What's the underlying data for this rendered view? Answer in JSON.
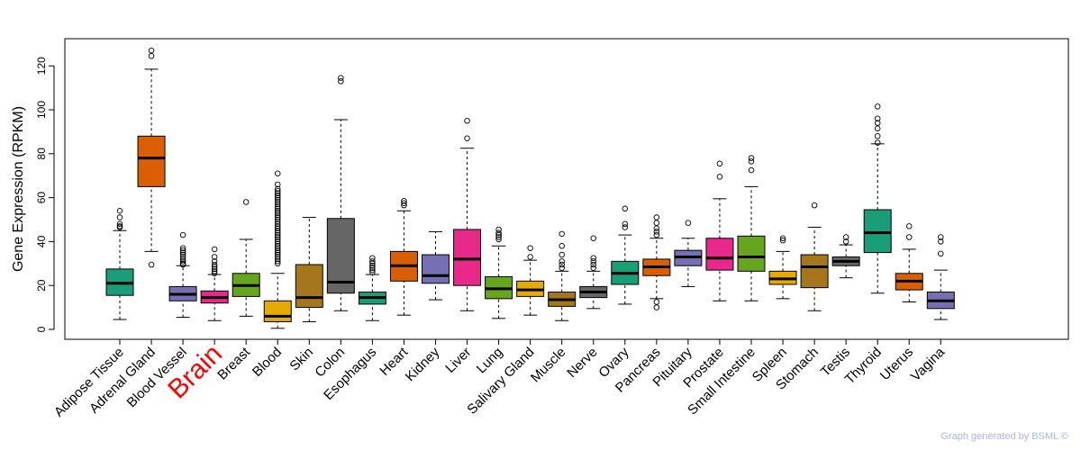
{
  "chart_data": {
    "type": "box",
    "ylabel": "Gene Expression (RPKM)",
    "xlabel": "",
    "ylim": [
      -4,
      131
    ],
    "yticks": [
      0,
      20,
      40,
      60,
      80,
      100,
      120
    ],
    "highlight": "Brain",
    "credit": "Graph generated by BSML ©",
    "series": [
      {
        "name": "Adipose Tissue",
        "color": "#1b9e77",
        "lo": 4.5,
        "q1": 15.5,
        "median": 21,
        "q3": 27.5,
        "hi": 45,
        "outliers": [
          46.5,
          47,
          48,
          51,
          54
        ]
      },
      {
        "name": "Adrenal Gland",
        "color": "#d95f02",
        "lo": 35.5,
        "q1": 65,
        "median": 78,
        "q3": 88,
        "hi": 118.5,
        "outliers": [
          29.5,
          124.5,
          127
        ]
      },
      {
        "name": "Blood Vessel",
        "color": "#7570b3",
        "lo": 5.5,
        "q1": 13,
        "median": 16,
        "q3": 19.5,
        "hi": 29,
        "outliers": [
          29.5,
          30,
          31,
          32,
          33,
          34,
          35,
          36,
          37,
          43
        ]
      },
      {
        "name": "Brain",
        "color": "#e7298a",
        "lo": 4,
        "q1": 12,
        "median": 14.5,
        "q3": 17.5,
        "hi": 25,
        "outliers": [
          25.5,
          26.5,
          27.5,
          28.5,
          29.5,
          31,
          33,
          36.5
        ]
      },
      {
        "name": "Breast",
        "color": "#66a61e",
        "lo": 6,
        "q1": 15,
        "median": 20,
        "q3": 25.5,
        "hi": 41,
        "outliers": [
          58
        ]
      },
      {
        "name": "Blood",
        "color": "#e6ab02",
        "lo": 0.5,
        "q1": 3.5,
        "median": 6,
        "q3": 13,
        "hi": 25.5,
        "outliers": [
          30,
          31,
          32,
          33,
          34,
          35,
          36,
          37,
          38,
          39,
          40,
          41,
          42,
          43,
          44,
          45,
          46,
          47,
          48,
          49,
          50,
          51,
          52,
          53,
          54,
          55,
          56,
          57,
          58,
          59,
          60,
          61,
          62,
          63,
          64,
          66,
          71
        ]
      },
      {
        "name": "Skin",
        "color": "#a6761d",
        "lo": 3.5,
        "q1": 10,
        "median": 14.5,
        "q3": 29.5,
        "hi": 51,
        "outliers": []
      },
      {
        "name": "Colon",
        "color": "#666666",
        "lo": 8.5,
        "q1": 16.5,
        "median": 21.5,
        "q3": 50.5,
        "hi": 95.5,
        "outliers": [
          113,
          114.5
        ]
      },
      {
        "name": "Esophagus",
        "color": "#1b9e77",
        "lo": 4,
        "q1": 11.5,
        "median": 14.5,
        "q3": 17,
        "hi": 25,
        "outliers": [
          26,
          27,
          28,
          29,
          30,
          31,
          32.5
        ]
      },
      {
        "name": "Heart",
        "color": "#d95f02",
        "lo": 6.5,
        "q1": 22,
        "median": 29,
        "q3": 35.5,
        "hi": 54,
        "outliers": [
          56.5,
          57.5,
          58.5
        ]
      },
      {
        "name": "Kidney",
        "color": "#7570b3",
        "lo": 13.5,
        "q1": 21,
        "median": 24.5,
        "q3": 34,
        "hi": 44.5,
        "outliers": []
      },
      {
        "name": "Liver",
        "color": "#e7298a",
        "lo": 8.5,
        "q1": 20,
        "median": 32,
        "q3": 45.5,
        "hi": 82.5,
        "outliers": [
          87,
          95
        ]
      },
      {
        "name": "Lung",
        "color": "#66a61e",
        "lo": 5,
        "q1": 14,
        "median": 18.5,
        "q3": 24,
        "hi": 38,
        "outliers": [
          41,
          42,
          43,
          44,
          45.5
        ]
      },
      {
        "name": "Salivary Gland",
        "color": "#e6ab02",
        "lo": 6.5,
        "q1": 15,
        "median": 18,
        "q3": 22,
        "hi": 31.5,
        "outliers": [
          33,
          37
        ]
      },
      {
        "name": "Muscle",
        "color": "#a6761d",
        "lo": 4,
        "q1": 10.5,
        "median": 13.5,
        "q3": 17,
        "hi": 26.5,
        "outliers": [
          28,
          29.5,
          31,
          34,
          38,
          43.5
        ]
      },
      {
        "name": "Nerve",
        "color": "#666666",
        "lo": 9.5,
        "q1": 14.5,
        "median": 17,
        "q3": 19.5,
        "hi": 26.5,
        "outliers": [
          28,
          29.5,
          31,
          32.5,
          41.5
        ]
      },
      {
        "name": "Ovary",
        "color": "#1b9e77",
        "lo": 11.5,
        "q1": 20.5,
        "median": 25.5,
        "q3": 31,
        "hi": 43,
        "outliers": [
          46.5,
          48,
          55
        ]
      },
      {
        "name": "Pancreas",
        "color": "#d95f02",
        "lo": 14,
        "q1": 24.5,
        "median": 28.5,
        "q3": 32,
        "hi": 41.5,
        "outliers": [
          10,
          12.5,
          43,
          44.5,
          46,
          48.5,
          51
        ]
      },
      {
        "name": "Pituitary",
        "color": "#7570b3",
        "lo": 19.5,
        "q1": 29,
        "median": 33,
        "q3": 36,
        "hi": 41.5,
        "outliers": [
          48.5
        ]
      },
      {
        "name": "Prostate",
        "color": "#e7298a",
        "lo": 13,
        "q1": 27,
        "median": 32.5,
        "q3": 41.5,
        "hi": 59.5,
        "outliers": [
          69.5,
          75.5
        ]
      },
      {
        "name": "Small Intestine",
        "color": "#66a61e",
        "lo": 13,
        "q1": 26.5,
        "median": 33,
        "q3": 42.5,
        "hi": 65,
        "outliers": [
          72.5,
          76.5,
          78
        ]
      },
      {
        "name": "Spleen",
        "color": "#e6ab02",
        "lo": 14,
        "q1": 20.5,
        "median": 23,
        "q3": 26.5,
        "hi": 35.5,
        "outliers": [
          40.5,
          41.5
        ]
      },
      {
        "name": "Stomach",
        "color": "#a6761d",
        "lo": 8.5,
        "q1": 19,
        "median": 28.5,
        "q3": 34,
        "hi": 46.5,
        "outliers": [
          56.5
        ]
      },
      {
        "name": "Testis",
        "color": "#666666",
        "lo": 23.5,
        "q1": 29,
        "median": 31,
        "q3": 33,
        "hi": 38.5,
        "outliers": [
          40,
          42
        ]
      },
      {
        "name": "Thyroid",
        "color": "#1b9e77",
        "lo": 16.5,
        "q1": 35,
        "median": 44,
        "q3": 54.5,
        "hi": 84.5,
        "outliers": [
          85,
          88,
          91.5,
          94,
          96,
          101.5
        ]
      },
      {
        "name": "Uterus",
        "color": "#d95f02",
        "lo": 12.5,
        "q1": 18,
        "median": 22,
        "q3": 25.5,
        "hi": 36.5,
        "outliers": [
          42,
          47
        ]
      },
      {
        "name": "Vagina",
        "color": "#7570b3",
        "lo": 4.5,
        "q1": 9.5,
        "median": 13,
        "q3": 17,
        "hi": 27,
        "outliers": [
          34.5,
          40,
          42
        ]
      }
    ]
  }
}
